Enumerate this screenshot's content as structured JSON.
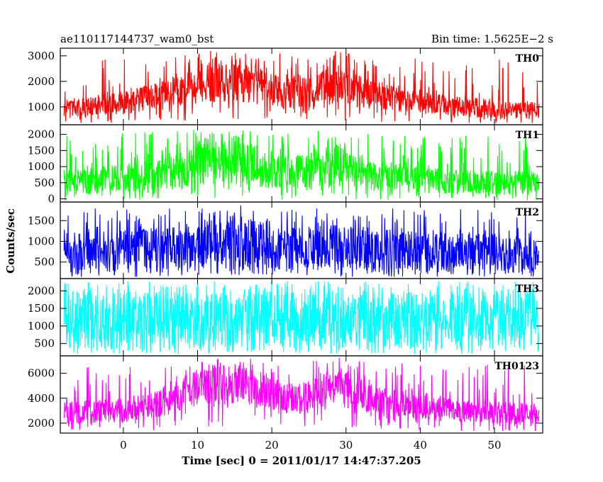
{
  "chart_data": {
    "type": "line",
    "title_left": "ae110117144737_wam0_bst",
    "title_right": "Bin time: 1.5625E−2 s",
    "xlabel": "Time [sec] 0 = 2011/01/17 14:47:37.205",
    "ylabel": "Counts/sec",
    "xlim": [
      -8.5,
      56.5
    ],
    "x_ticks": [
      0,
      10,
      20,
      30,
      40,
      50
    ],
    "grid": false,
    "panels": [
      {
        "name": "TH0",
        "color": "#ff0000",
        "ylim": [
          300,
          3300
        ],
        "y_ticks": [
          1000,
          2000,
          3000
        ],
        "profile": [
          {
            "t": -8,
            "low": 600,
            "high": 1300
          },
          {
            "t": 0,
            "low": 700,
            "high": 1600
          },
          {
            "t": 5,
            "low": 900,
            "high": 2000
          },
          {
            "t": 10,
            "low": 1100,
            "high": 2500
          },
          {
            "t": 12,
            "low": 1200,
            "high": 3000
          },
          {
            "t": 18,
            "low": 1100,
            "high": 2600
          },
          {
            "t": 22,
            "low": 900,
            "high": 2200
          },
          {
            "t": 26,
            "low": 900,
            "high": 2300
          },
          {
            "t": 29,
            "low": 1100,
            "high": 2900
          },
          {
            "t": 33,
            "low": 900,
            "high": 2100
          },
          {
            "t": 45,
            "low": 600,
            "high": 1400
          },
          {
            "t": 56,
            "low": 500,
            "high": 1200
          }
        ]
      },
      {
        "name": "TH1",
        "color": "#00ff00",
        "ylim": [
          -100,
          2300
        ],
        "y_ticks": [
          0,
          500,
          1000,
          1500,
          2000
        ],
        "profile": [
          {
            "t": -8,
            "low": 100,
            "high": 900
          },
          {
            "t": 5,
            "low": 250,
            "high": 1200
          },
          {
            "t": 11,
            "low": 400,
            "high": 1800
          },
          {
            "t": 17,
            "low": 400,
            "high": 1800
          },
          {
            "t": 22,
            "low": 250,
            "high": 1300
          },
          {
            "t": 29,
            "low": 400,
            "high": 1800
          },
          {
            "t": 33,
            "low": 250,
            "high": 1200
          },
          {
            "t": 45,
            "low": 150,
            "high": 900
          },
          {
            "t": 56,
            "low": 100,
            "high": 850
          }
        ]
      },
      {
        "name": "TH2",
        "color": "#0000ff",
        "ylim": [
          100,
          1950
        ],
        "y_ticks": [
          500,
          1000,
          1500
        ],
        "profile": [
          {
            "t": -8,
            "low": 250,
            "high": 1200
          },
          {
            "t": 10,
            "low": 300,
            "high": 1400
          },
          {
            "t": 16,
            "low": 350,
            "high": 1600
          },
          {
            "t": 22,
            "low": 300,
            "high": 1300
          },
          {
            "t": 29,
            "low": 300,
            "high": 1400
          },
          {
            "t": 40,
            "low": 250,
            "high": 1250
          },
          {
            "t": 56,
            "low": 250,
            "high": 1150
          }
        ]
      },
      {
        "name": "TH3",
        "color": "#00ffff",
        "ylim": [
          150,
          2350
        ],
        "y_ticks": [
          500,
          1000,
          1500,
          2000
        ],
        "profile": [
          {
            "t": -8,
            "low": 350,
            "high": 2000
          },
          {
            "t": 56,
            "low": 350,
            "high": 2000
          }
        ]
      },
      {
        "name": "TH0123",
        "color": "#ff00ff",
        "ylim": [
          1200,
          7400
        ],
        "y_ticks": [
          2000,
          4000,
          6000
        ],
        "profile": [
          {
            "t": -8,
            "low": 1800,
            "high": 3800
          },
          {
            "t": 0,
            "low": 2000,
            "high": 4000
          },
          {
            "t": 6,
            "low": 2600,
            "high": 5000
          },
          {
            "t": 11,
            "low": 3500,
            "high": 6800
          },
          {
            "t": 17,
            "low": 3300,
            "high": 6400
          },
          {
            "t": 22,
            "low": 2800,
            "high": 5200
          },
          {
            "t": 26,
            "low": 2900,
            "high": 5600
          },
          {
            "t": 29,
            "low": 3300,
            "high": 6700
          },
          {
            "t": 33,
            "low": 2700,
            "high": 5200
          },
          {
            "t": 45,
            "low": 2000,
            "high": 4000
          },
          {
            "t": 56,
            "low": 1800,
            "high": 3600
          }
        ]
      }
    ]
  }
}
